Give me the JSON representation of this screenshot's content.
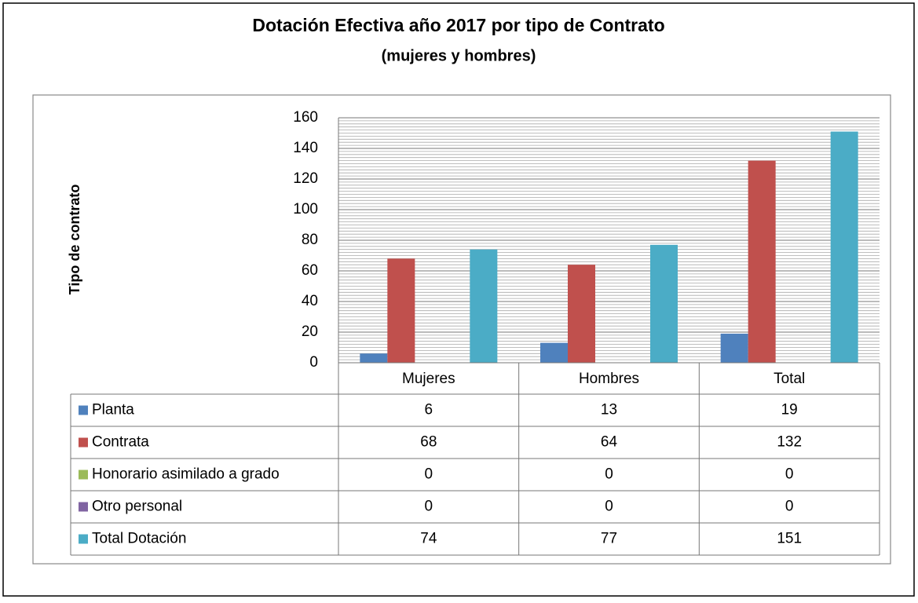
{
  "chart_data": {
    "type": "bar",
    "title": "Dotación Efectiva año 2017 por tipo de Contrato",
    "subtitle": "(mujeres y hombres)",
    "y_label": "Tipo de contrato",
    "categories": [
      "Mujeres",
      "Hombres",
      "Total"
    ],
    "series": [
      {
        "name": "Planta",
        "color": "#4f81bd",
        "values": [
          6,
          13,
          19
        ]
      },
      {
        "name": "Contrata",
        "color": "#c0504d",
        "values": [
          68,
          64,
          132
        ]
      },
      {
        "name": "Honorario asimilado a grado",
        "color": "#9bbb59",
        "values": [
          0,
          0,
          0
        ]
      },
      {
        "name": "Otro personal",
        "color": "#8064a2",
        "values": [
          0,
          0,
          0
        ]
      },
      {
        "name": "Total Dotación",
        "color": "#4bacc6",
        "values": [
          74,
          77,
          151
        ]
      }
    ],
    "ylim": [
      0,
      160
    ],
    "yticks": [
      0,
      20,
      40,
      60,
      80,
      100,
      120,
      140,
      160
    ],
    "grid": true,
    "minor_grid_step": 2,
    "data_table": true
  }
}
